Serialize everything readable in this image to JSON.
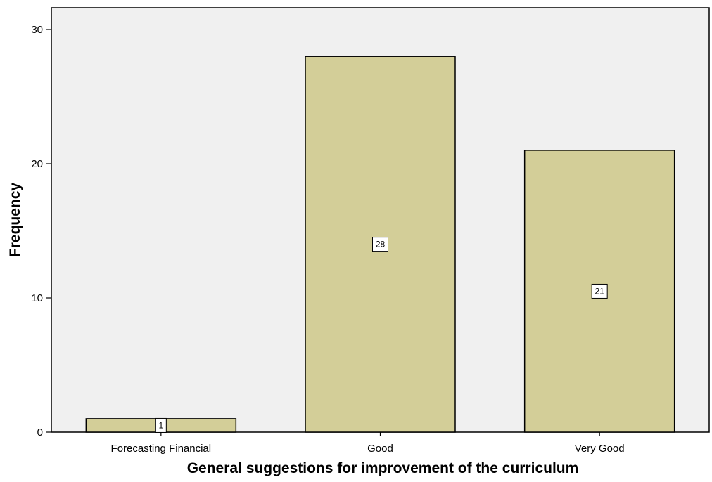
{
  "chart_data": {
    "type": "bar",
    "categories": [
      "Forecasting Financial",
      "Good",
      "Very Good"
    ],
    "values": [
      1,
      28,
      21
    ],
    "data_labels": [
      "1",
      "28",
      "21"
    ],
    "xlabel": "General suggestions for improvement of the curriculum",
    "ylabel": "Frequency",
    "ylim": [
      0,
      32
    ],
    "yticks": [
      0,
      10,
      20,
      30
    ],
    "ytick_labels": [
      "0",
      "10",
      "20",
      "30"
    ],
    "grid": false,
    "legend": "none"
  },
  "colors": {
    "plot_background": "#f0f0f0",
    "bar_fill": "#d3ce98",
    "bar_stroke": "#000000",
    "axis": "#000000"
  }
}
